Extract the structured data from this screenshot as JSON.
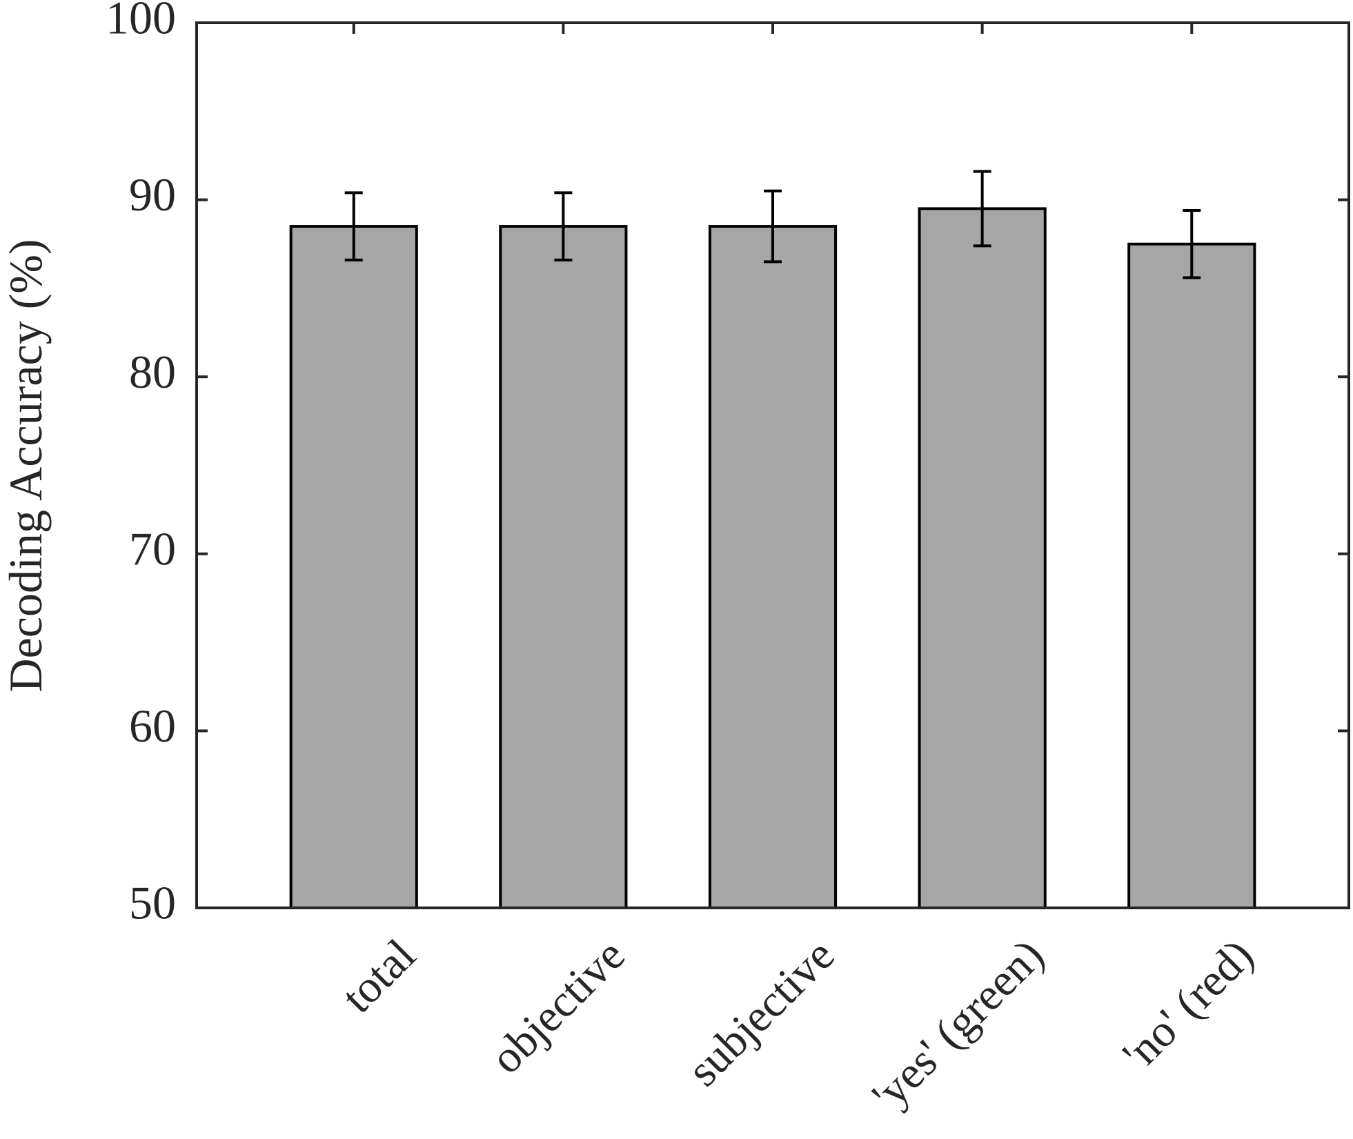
{
  "chart_data": {
    "type": "bar",
    "title": "",
    "xlabel": "",
    "ylabel": "Decoding Accuracy (%)",
    "categories": [
      "total",
      "objective",
      "subjective",
      "'yes' (green)",
      "'no' (red)"
    ],
    "values": [
      88.5,
      88.5,
      88.5,
      89.5,
      87.5
    ],
    "error": [
      1.9,
      1.9,
      2.0,
      2.1,
      1.9
    ],
    "ylim": [
      50,
      100
    ],
    "yticks": [
      50,
      60,
      70,
      80,
      90,
      100
    ],
    "grid": false,
    "legend": "none",
    "bar_color": "#a6a6a6",
    "edge_color": "#000000"
  }
}
